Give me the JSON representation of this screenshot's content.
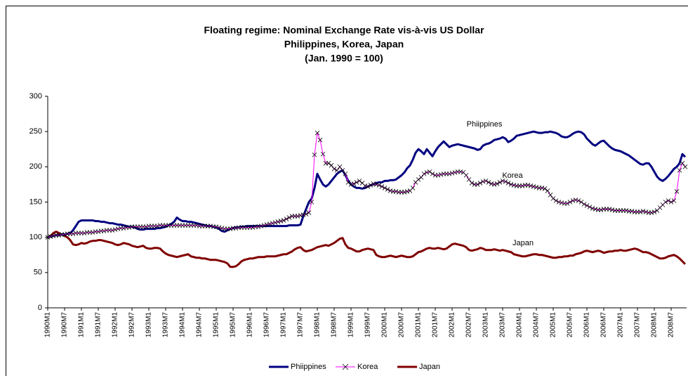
{
  "chart_data": {
    "type": "line",
    "title": [
      "Floating regime: Nominal Exchange Rate vis-à-vis US Dollar",
      "Philippines, Korea, Japan",
      "(Jan. 1990 = 100)"
    ],
    "annotations": [
      "Phiippines",
      "Korea",
      "Japan"
    ],
    "categories": [
      "1990M1",
      null,
      null,
      null,
      null,
      null,
      "1990M7",
      null,
      null,
      null,
      null,
      null,
      "1991M1",
      null,
      null,
      null,
      null,
      null,
      "1991M7",
      null,
      null,
      null,
      null,
      null,
      "1992M1",
      null,
      null,
      null,
      null,
      null,
      "1992M7",
      null,
      null,
      null,
      null,
      null,
      "1993M1",
      null,
      null,
      null,
      null,
      null,
      "1993M7",
      null,
      null,
      null,
      null,
      null,
      "1994M1",
      null,
      null,
      null,
      null,
      null,
      "1994M7",
      null,
      null,
      null,
      null,
      null,
      "1995M1",
      null,
      null,
      null,
      null,
      null,
      "1995M7",
      null,
      null,
      null,
      null,
      null,
      "1996M1",
      null,
      null,
      null,
      null,
      null,
      "1996M7",
      null,
      null,
      null,
      null,
      null,
      "1997M1",
      null,
      null,
      null,
      null,
      null,
      "1997M7",
      null,
      null,
      null,
      null,
      null,
      "1998M1",
      null,
      null,
      null,
      null,
      null,
      "1998M7",
      null,
      null,
      null,
      null,
      null,
      "1999M1",
      null,
      null,
      null,
      null,
      null,
      "1999M7",
      null,
      null,
      null,
      null,
      null,
      "2000M1",
      null,
      null,
      null,
      null,
      null,
      "2000M7",
      null,
      null,
      null,
      null,
      null,
      "2001M1",
      null,
      null,
      null,
      null,
      null,
      "2001M7",
      null,
      null,
      null,
      null,
      null,
      "2002M1",
      null,
      null,
      null,
      null,
      null,
      "2002M7",
      null,
      null,
      null,
      null,
      null,
      "2003M1",
      null,
      null,
      null,
      null,
      null,
      "2003M7",
      null,
      null,
      null,
      null,
      null,
      "2004M1",
      null,
      null,
      null,
      null,
      null,
      "2004M7",
      null,
      null,
      null,
      null,
      null,
      "2005M1",
      null,
      null,
      null,
      null,
      null,
      "2005M7",
      null,
      null,
      null,
      null,
      null,
      "2006M1",
      null,
      null,
      null,
      null,
      null,
      "2006M7",
      null,
      null,
      null,
      null,
      null,
      "2007M1",
      null,
      null,
      null,
      null,
      null,
      "2007M7",
      null,
      null,
      null,
      null,
      null,
      "2008M1",
      null,
      null,
      null,
      null,
      null,
      "2008M7",
      null,
      null,
      null,
      null,
      null
    ],
    "series": [
      {
        "name": "Phiippines",
        "color": "#000080",
        "marker": "none",
        "values": [
          100,
          101,
          102,
          103,
          103,
          104,
          104,
          105,
          106,
          110,
          116,
          122,
          124,
          124,
          124,
          124,
          124,
          123,
          123,
          122,
          122,
          121,
          120,
          120,
          119,
          118,
          118,
          117,
          116,
          115,
          115,
          114,
          112,
          111,
          111,
          112,
          112,
          112,
          112,
          113,
          113,
          114,
          115,
          117,
          119,
          122,
          128,
          125,
          123,
          123,
          122,
          122,
          121,
          120,
          119,
          118,
          117,
          116,
          116,
          115,
          114,
          112,
          109,
          108,
          110,
          112,
          113,
          114,
          114,
          115,
          115,
          116,
          116,
          116,
          116,
          116,
          116,
          116,
          116,
          116,
          116,
          116,
          116,
          116,
          116,
          116,
          117,
          117,
          117,
          117,
          118,
          130,
          140,
          150,
          155,
          170,
          190,
          182,
          175,
          172,
          175,
          180,
          185,
          190,
          193,
          195,
          188,
          180,
          175,
          172,
          170,
          170,
          169,
          170,
          172,
          174,
          175,
          177,
          178,
          178,
          180,
          180,
          181,
          181,
          182,
          185,
          188,
          192,
          198,
          202,
          210,
          220,
          225,
          222,
          218,
          225,
          220,
          215,
          222,
          228,
          232,
          236,
          232,
          228,
          230,
          231,
          232,
          231,
          230,
          229,
          228,
          227,
          226,
          224,
          225,
          230,
          232,
          233,
          235,
          238,
          239,
          240,
          242,
          240,
          235,
          237,
          240,
          244,
          245,
          246,
          247,
          248,
          249,
          250,
          249,
          248,
          248,
          249,
          249,
          250,
          249,
          248,
          246,
          243,
          242,
          242,
          244,
          247,
          249,
          250,
          249,
          246,
          240,
          236,
          232,
          230,
          233,
          236,
          237,
          233,
          229,
          226,
          224,
          223,
          222,
          220,
          218,
          216,
          213,
          210,
          207,
          204,
          203,
          205,
          205,
          200,
          193,
          186,
          182,
          180,
          183,
          187,
          192,
          197,
          200,
          205,
          218,
          214
        ]
      },
      {
        "name": "Korea",
        "color": "#ff00ff",
        "marker": "x",
        "values": [
          100,
          101,
          102,
          103,
          103,
          104,
          104,
          105,
          105,
          105,
          106,
          106,
          106,
          106,
          107,
          107,
          107,
          108,
          108,
          109,
          109,
          110,
          110,
          110,
          111,
          112,
          113,
          113,
          114,
          114,
          115,
          115,
          115,
          115,
          115,
          115,
          116,
          116,
          116,
          116,
          117,
          117,
          117,
          117,
          117,
          117,
          117,
          117,
          117,
          117,
          117,
          117,
          117,
          117,
          116,
          116,
          116,
          116,
          116,
          115,
          115,
          114,
          113,
          112,
          112,
          112,
          113,
          113,
          114,
          114,
          114,
          114,
          114,
          114,
          115,
          115,
          116,
          117,
          118,
          119,
          120,
          121,
          122,
          123,
          124,
          126,
          128,
          130,
          130,
          130,
          131,
          132,
          133,
          135,
          150,
          217,
          248,
          238,
          218,
          205,
          205,
          202,
          197,
          195,
          200,
          195,
          190,
          178,
          175,
          176,
          178,
          180,
          177,
          173,
          172,
          174,
          176,
          175,
          174,
          172,
          170,
          168,
          166,
          165,
          165,
          164,
          164,
          164,
          165,
          166,
          170,
          178,
          182,
          185,
          190,
          192,
          193,
          190,
          188,
          188,
          189,
          190,
          190,
          190,
          191,
          192,
          193,
          193,
          192,
          188,
          182,
          177,
          175,
          175,
          177,
          179,
          180,
          178,
          176,
          175,
          176,
          178,
          180,
          179,
          177,
          175,
          174,
          173,
          173,
          173,
          174,
          174,
          173,
          172,
          171,
          170,
          170,
          169,
          166,
          160,
          155,
          152,
          150,
          149,
          148,
          148,
          150,
          152,
          153,
          152,
          150,
          147,
          145,
          143,
          141,
          140,
          139,
          139,
          140,
          140,
          140,
          139,
          138,
          138,
          138,
          138,
          138,
          137,
          137,
          136,
          136,
          136,
          137,
          136,
          135,
          135,
          136,
          138,
          142,
          146,
          150,
          152,
          150,
          152,
          165,
          195,
          205,
          200
        ]
      },
      {
        "name": "Japan",
        "color": "#800000",
        "marker": "none",
        "values": [
          100,
          102,
          106,
          108,
          106,
          104,
          102,
          100,
          96,
          90,
          89,
          90,
          92,
          91,
          92,
          94,
          95,
          95,
          96,
          96,
          95,
          94,
          93,
          92,
          90,
          89,
          90,
          92,
          91,
          90,
          88,
          87,
          86,
          87,
          88,
          85,
          84,
          84,
          85,
          85,
          84,
          80,
          77,
          75,
          74,
          73,
          72,
          73,
          74,
          75,
          76,
          73,
          72,
          71,
          71,
          70,
          70,
          69,
          68,
          68,
          68,
          67,
          66,
          65,
          63,
          58,
          58,
          59,
          62,
          66,
          68,
          69,
          70,
          70,
          71,
          72,
          72,
          72,
          73,
          73,
          73,
          73,
          74,
          75,
          76,
          76,
          78,
          80,
          83,
          85,
          86,
          82,
          80,
          81,
          82,
          84,
          86,
          87,
          88,
          89,
          88,
          90,
          92,
          95,
          98,
          99,
          90,
          85,
          84,
          82,
          80,
          80,
          82,
          83,
          84,
          83,
          82,
          75,
          73,
          72,
          72,
          73,
          74,
          73,
          72,
          73,
          74,
          73,
          72,
          72,
          73,
          76,
          79,
          80,
          82,
          84,
          85,
          84,
          84,
          85,
          84,
          83,
          84,
          87,
          90,
          91,
          90,
          89,
          88,
          86,
          82,
          81,
          82,
          83,
          85,
          84,
          82,
          82,
          82,
          83,
          82,
          81,
          82,
          81,
          80,
          79,
          76,
          75,
          74,
          73,
          73,
          74,
          75,
          76,
          76,
          75,
          75,
          74,
          73,
          72,
          71,
          71,
          72,
          72,
          73,
          73,
          74,
          74,
          76,
          77,
          78,
          80,
          81,
          80,
          79,
          80,
          81,
          80,
          78,
          79,
          80,
          80,
          81,
          81,
          82,
          81,
          81,
          82,
          83,
          84,
          83,
          81,
          79,
          79,
          78,
          76,
          74,
          72,
          70,
          70,
          71,
          73,
          74,
          75,
          73,
          70,
          66,
          62
        ]
      }
    ],
    "ylim": [
      0,
      300
    ],
    "yticks": [
      0,
      50,
      100,
      150,
      200,
      250,
      300
    ],
    "grid": false,
    "legend": "bottom"
  }
}
